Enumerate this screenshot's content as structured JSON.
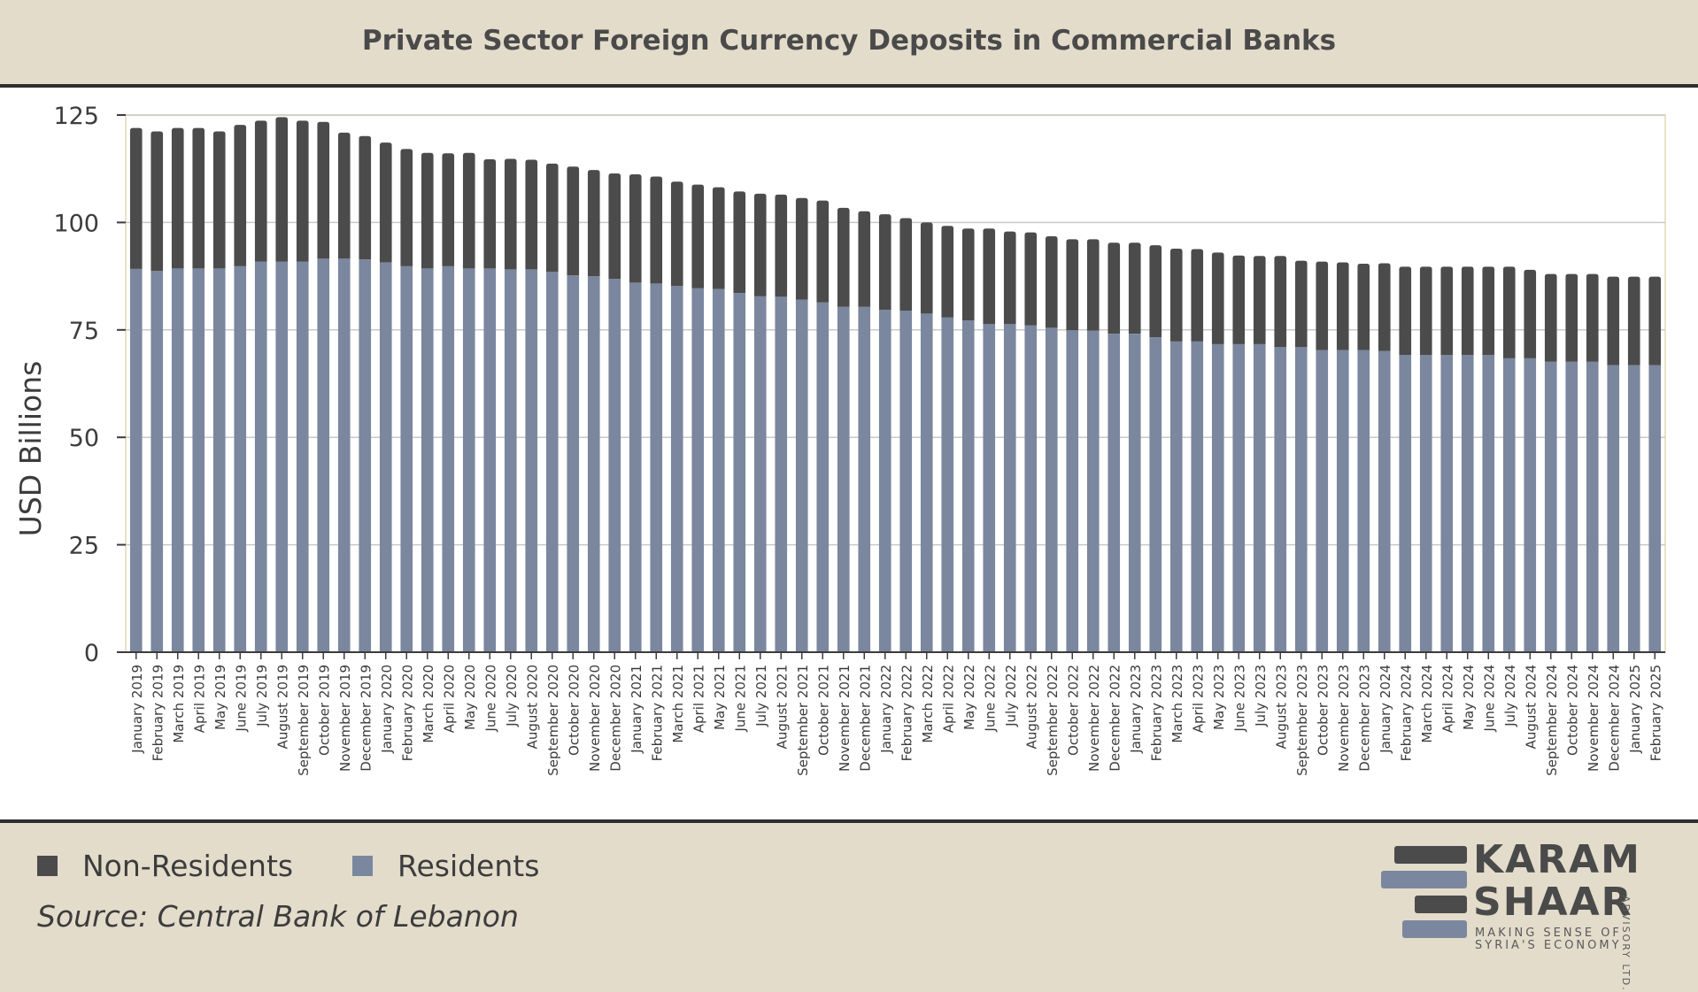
{
  "title": "Private Sector Foreign Currency Deposits in Commercial Banks",
  "legend": {
    "non_residents": "Non-Residents",
    "residents": "Residents"
  },
  "source": "Source: Central Bank of Lebanon",
  "logo": {
    "line1": "KARAM",
    "line2": "SHAAR",
    "tagline1": "MAKING SENSE OF",
    "tagline2": "SYRIA'S ECONOMY",
    "side": "ADVISORY LTD."
  },
  "colors": {
    "residents": "#7a879e",
    "non_residents": "#4b4b4b",
    "background": "#e3dccb"
  },
  "chart_data": {
    "type": "bar",
    "stacked": true,
    "ylabel": "USD Billions",
    "xlabel": "",
    "ylim": [
      0,
      125
    ],
    "yticks": [
      0,
      25,
      50,
      75,
      100,
      125
    ],
    "grid": true,
    "legend_position": "bottom-left",
    "categories": [
      "January 2019",
      "February 2019",
      "March 2019",
      "April 2019",
      "May 2019",
      "June 2019",
      "July 2019",
      "August 2019",
      "September 2019",
      "October 2019",
      "November 2019",
      "December 2019",
      "January 2020",
      "February 2020",
      "March 2020",
      "April 2020",
      "May 2020",
      "June 2020",
      "July 2020",
      "August 2020",
      "September 2020",
      "October 2020",
      "November 2020",
      "December 2020",
      "January 2021",
      "February 2021",
      "March 2021",
      "April 2021",
      "May 2021",
      "June 2021",
      "July 2021",
      "August 2021",
      "September 2021",
      "October 2021",
      "November 2021",
      "December 2021",
      "January 2022",
      "February 2022",
      "March 2022",
      "April 2022",
      "May 2022",
      "June 2022",
      "July 2022",
      "August 2022",
      "September 2022",
      "October 2022",
      "November 2022",
      "December 2022",
      "January 2023",
      "February 2023",
      "March 2023",
      "April 2023",
      "May 2023",
      "June 2023",
      "July 2023",
      "August 2023",
      "September 2023",
      "October 2023",
      "November 2023",
      "December 2023",
      "January 2024",
      "February 2024",
      "March 2024",
      "April 2024",
      "May 2024",
      "June 2024",
      "July 2024",
      "August 2024",
      "September 2024",
      "October 2024",
      "November 2024",
      "December 2024",
      "January 2025",
      "February 2025"
    ],
    "series": [
      {
        "name": "Residents",
        "values": [
          89.2,
          88.7,
          89.3,
          89.3,
          89.3,
          89.8,
          90.9,
          90.9,
          90.9,
          91.6,
          91.6,
          91.4,
          90.7,
          89.8,
          89.3,
          89.8,
          89.3,
          89.3,
          89.1,
          89.1,
          88.5,
          87.7,
          87.5,
          86.9,
          86.0,
          85.8,
          85.2,
          84.7,
          84.5,
          83.6,
          82.8,
          82.7,
          82.0,
          81.4,
          80.4,
          80.4,
          79.7,
          79.5,
          78.8,
          77.9,
          77.2,
          76.4,
          76.4,
          76.1,
          75.5,
          74.9,
          74.8,
          74.1,
          74.1,
          73.3,
          72.3,
          72.3,
          71.7,
          71.7,
          71.7,
          71.0,
          71.0,
          70.3,
          70.3,
          70.3,
          70.1,
          69.2,
          69.2,
          69.2,
          69.2,
          69.2,
          68.4,
          68.4,
          67.6,
          67.6,
          67.6,
          66.8,
          66.8,
          66.8
        ]
      },
      {
        "name": "Non-Residents",
        "values": [
          32.8,
          32.5,
          32.7,
          32.7,
          31.9,
          32.9,
          32.8,
          33.6,
          32.8,
          31.8,
          29.3,
          28.7,
          27.9,
          27.3,
          26.9,
          26.3,
          26.9,
          25.4,
          25.7,
          25.5,
          25.2,
          25.3,
          24.7,
          24.5,
          25.2,
          24.9,
          24.3,
          24.1,
          23.7,
          23.6,
          23.9,
          23.8,
          23.7,
          23.7,
          23.0,
          22.2,
          22.2,
          21.5,
          21.2,
          21.3,
          21.4,
          22.2,
          21.5,
          21.6,
          21.3,
          21.2,
          21.3,
          21.2,
          21.2,
          21.4,
          21.6,
          21.5,
          21.3,
          20.6,
          20.5,
          21.2,
          20.1,
          20.6,
          20.4,
          20.1,
          20.4,
          20.5,
          20.5,
          20.5,
          20.5,
          20.5,
          21.3,
          20.6,
          20.4,
          20.4,
          20.4,
          20.6,
          20.6,
          20.6
        ]
      }
    ]
  }
}
